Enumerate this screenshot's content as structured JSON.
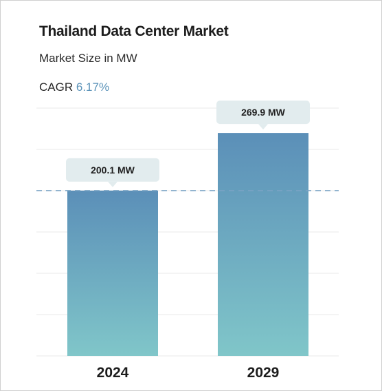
{
  "header": {
    "title": "Thailand Data Center Market",
    "subtitle": "Market Size in MW",
    "cagr_label": "CAGR",
    "cagr_value": "6.17%"
  },
  "colors": {
    "bar_top": "#5b8fb8",
    "bar_bottom": "#80c6c9",
    "cagr_accent": "#5b93b9",
    "gridline": "#e9e9e9",
    "reference_line": "#7aa3c4",
    "label_box": "#e2ecee"
  },
  "chart_data": {
    "type": "bar",
    "categories": [
      "2024",
      "2029"
    ],
    "values": [
      200.1,
      269.9
    ],
    "unit": "MW",
    "data_labels": [
      "200.1 MW",
      "269.9 MW"
    ],
    "ylim": [
      0,
      300
    ],
    "reference_line_value": 200.1,
    "grid": true,
    "legend": "none"
  }
}
